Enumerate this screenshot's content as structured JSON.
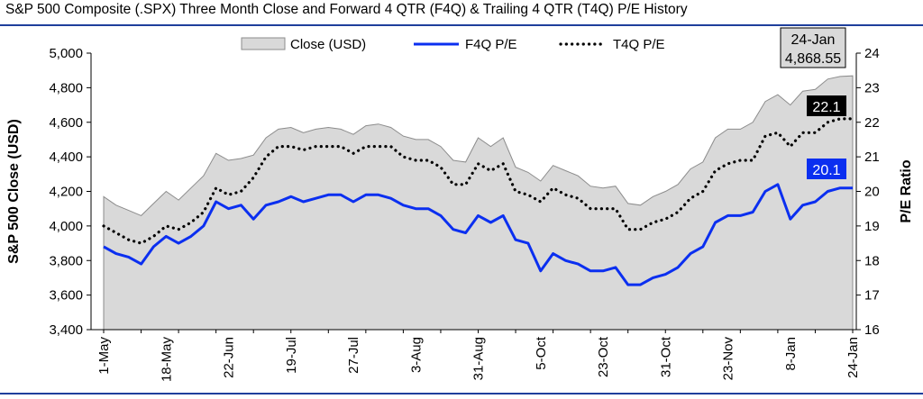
{
  "page": {
    "title": "S&P 500 Composite (.SPX) Three Month Close and Forward 4 QTR (F4Q) & Trailing 4 QTR (T4Q) P/E History"
  },
  "colors": {
    "rule": "#1f3f9c",
    "area_fill": "#d9d9d9",
    "area_stroke": "#8c8c8c",
    "f4q_line": "#0b2ff0",
    "t4q_line": "#000000",
    "callout_t4q": "#000000",
    "callout_f4q": "#0b2ff0",
    "last_box": "#d9d9d9"
  },
  "chart_data": {
    "type": "area+line",
    "title": "S&P 500 Composite (.SPX) Three Month Close and Forward 4 QTR (F4Q) & Trailing 4 QTR (T4Q) P/E History",
    "ylabel": "S&P 500 Close (USD)",
    "y2label": "P/E Ratio",
    "ylim": [
      3400,
      5000
    ],
    "y2lim": [
      16,
      24
    ],
    "y_ticks": [
      "3,400",
      "3,600",
      "3,800",
      "4,000",
      "4,200",
      "4,400",
      "4,600",
      "4,800",
      "5,000"
    ],
    "y2_ticks": [
      "16",
      "17",
      "18",
      "19",
      "20",
      "21",
      "22",
      "23",
      "24"
    ],
    "x_tick_labels": [
      "1-May",
      "18-May",
      "22-Jun",
      "19-Jul",
      "27-Jul",
      "3-Aug",
      "31-Aug",
      "5-Oct",
      "23-Oct",
      "31-Oct",
      "23-Nov",
      "8-Jan",
      "24-Jan"
    ],
    "legend": {
      "placement": "top",
      "entries": [
        "Close (USD)",
        "F4Q P/E",
        "T4Q P/E"
      ]
    },
    "annotations": {
      "t4q_last": "22.1",
      "f4q_last": "20.1",
      "last_date": "24-Jan",
      "last_close": "4,868.55"
    },
    "series": [
      {
        "name": "Close (USD)",
        "kind": "area",
        "axis": "left",
        "values": [
          4170,
          4120,
          4090,
          4060,
          4130,
          4200,
          4150,
          4220,
          4290,
          4420,
          4380,
          4390,
          4410,
          4510,
          4560,
          4570,
          4540,
          4560,
          4570,
          4560,
          4530,
          4580,
          4590,
          4570,
          4520,
          4500,
          4500,
          4460,
          4380,
          4370,
          4510,
          4460,
          4510,
          4340,
          4310,
          4260,
          4350,
          4320,
          4290,
          4230,
          4220,
          4230,
          4130,
          4120,
          4170,
          4200,
          4240,
          4330,
          4370,
          4510,
          4560,
          4560,
          4600,
          4720,
          4760,
          4700,
          4780,
          4790,
          4850,
          4865,
          4868.55
        ]
      },
      {
        "name": "F4Q P/E",
        "kind": "line",
        "axis": "right",
        "values": [
          18.4,
          18.2,
          18.1,
          17.9,
          18.4,
          18.7,
          18.5,
          18.7,
          19.0,
          19.7,
          19.5,
          19.6,
          19.2,
          19.6,
          19.7,
          19.85,
          19.7,
          19.8,
          19.9,
          19.9,
          19.7,
          19.9,
          19.9,
          19.8,
          19.6,
          19.5,
          19.5,
          19.3,
          18.9,
          18.8,
          19.3,
          19.1,
          19.3,
          18.6,
          18.5,
          17.7,
          18.2,
          18.0,
          17.9,
          17.7,
          17.7,
          17.8,
          17.3,
          17.3,
          17.5,
          17.6,
          17.8,
          18.2,
          18.4,
          19.1,
          19.3,
          19.3,
          19.4,
          20.0,
          20.2,
          19.2,
          19.6,
          19.7,
          20.0,
          20.1,
          20.1
        ]
      },
      {
        "name": "T4Q P/E",
        "kind": "dotted-line",
        "axis": "right",
        "values": [
          19.0,
          18.8,
          18.6,
          18.5,
          18.7,
          19.0,
          18.9,
          19.1,
          19.4,
          20.1,
          19.9,
          20.0,
          20.4,
          21.0,
          21.3,
          21.3,
          21.2,
          21.3,
          21.3,
          21.3,
          21.1,
          21.3,
          21.3,
          21.3,
          21.0,
          20.9,
          20.9,
          20.7,
          20.2,
          20.2,
          20.8,
          20.6,
          20.8,
          20.0,
          19.9,
          19.7,
          20.1,
          19.9,
          19.8,
          19.5,
          19.5,
          19.5,
          18.9,
          18.9,
          19.1,
          19.2,
          19.4,
          19.8,
          20.0,
          20.6,
          20.8,
          20.9,
          20.9,
          21.6,
          21.7,
          21.3,
          21.7,
          21.7,
          22.0,
          22.1,
          22.1
        ]
      }
    ]
  }
}
